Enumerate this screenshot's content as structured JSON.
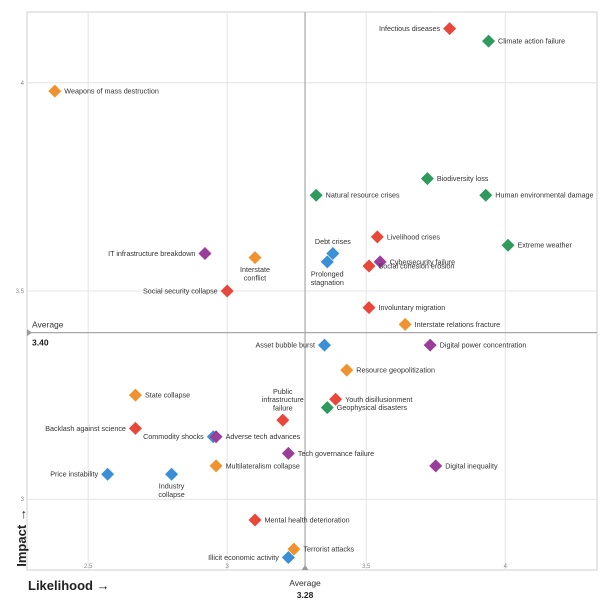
{
  "chart_data": {
    "type": "scatter",
    "xlabel": "Likelihood →",
    "ylabel": "Impact →",
    "xlim": [
      2.28,
      4.33
    ],
    "ylim": [
      2.83,
      4.17
    ],
    "x_ticks": [
      {
        "value": 2.5,
        "label": "2.5"
      },
      {
        "value": 3.0,
        "label": "3"
      },
      {
        "value": 3.5,
        "label": "3.5"
      },
      {
        "value": 4.0,
        "label": "4"
      }
    ],
    "y_ticks": [
      {
        "value": 3.0,
        "label": "3"
      },
      {
        "value": 3.5,
        "label": "3.5"
      },
      {
        "value": 4.0,
        "label": "4"
      }
    ],
    "average_x": {
      "value": 3.28,
      "label": "Average",
      "value_label": "3.28"
    },
    "average_y": {
      "value": 3.4,
      "label": "Average",
      "value_label": "3.40"
    },
    "grid": true,
    "category_colors": {
      "economic": "#3a8fd6",
      "environmental": "#2e9a5e",
      "geopolitical": "#f0922e",
      "societal": "#e8473a",
      "technological": "#9b3d9b"
    },
    "points": [
      {
        "name": "Infectious diseases",
        "x": 3.8,
        "y": 4.13,
        "category": "societal",
        "label_side": "left"
      },
      {
        "name": "Climate action failure",
        "x": 3.94,
        "y": 4.1,
        "category": "environmental",
        "label_side": "right"
      },
      {
        "name": "Weapons of mass destruction",
        "x": 2.38,
        "y": 3.98,
        "category": "geopolitical",
        "label_side": "right"
      },
      {
        "name": "Biodiversity loss",
        "x": 3.72,
        "y": 3.77,
        "category": "environmental",
        "label_side": "right"
      },
      {
        "name": "Natural resource crises",
        "x": 3.32,
        "y": 3.73,
        "category": "environmental",
        "label_side": "right"
      },
      {
        "name": "Human environmental damage",
        "x": 3.93,
        "y": 3.73,
        "category": "environmental",
        "label_side": "right"
      },
      {
        "name": "Livelihood crises",
        "x": 3.54,
        "y": 3.63,
        "category": "societal",
        "label_side": "right"
      },
      {
        "name": "Extreme weather",
        "x": 4.01,
        "y": 3.61,
        "category": "environmental",
        "label_side": "right"
      },
      {
        "name": "Debt crises",
        "x": 3.38,
        "y": 3.59,
        "category": "economic",
        "label_side": "above"
      },
      {
        "name": "Cybersecurity failure",
        "x": 3.55,
        "y": 3.57,
        "category": "technological",
        "label_side": "right"
      },
      {
        "name": "IT infrastructure breakdown",
        "x": 2.92,
        "y": 3.59,
        "category": "technological",
        "label_side": "left"
      },
      {
        "name": "Interstate conflict",
        "x": 3.1,
        "y": 3.58,
        "category": "geopolitical",
        "label_side": "below"
      },
      {
        "name": "Prolonged stagnation",
        "x": 3.36,
        "y": 3.57,
        "category": "economic",
        "label_side": "below"
      },
      {
        "name": "Social cohesion erosion",
        "x": 3.51,
        "y": 3.56,
        "category": "societal",
        "label_side": "right"
      },
      {
        "name": "Social security collapse",
        "x": 3.0,
        "y": 3.5,
        "category": "societal",
        "label_side": "left"
      },
      {
        "name": "Involuntary migration",
        "x": 3.51,
        "y": 3.46,
        "category": "societal",
        "label_side": "right"
      },
      {
        "name": "Interstate relations fracture",
        "x": 3.64,
        "y": 3.42,
        "category": "geopolitical",
        "label_side": "right"
      },
      {
        "name": "Asset bubble burst",
        "x": 3.35,
        "y": 3.37,
        "category": "economic",
        "label_side": "left"
      },
      {
        "name": "Digital power concentration",
        "x": 3.73,
        "y": 3.37,
        "category": "technological",
        "label_side": "right"
      },
      {
        "name": "Resource geopolitization",
        "x": 3.43,
        "y": 3.31,
        "category": "geopolitical",
        "label_side": "right"
      },
      {
        "name": "State collapse",
        "x": 2.67,
        "y": 3.25,
        "category": "geopolitical",
        "label_side": "right"
      },
      {
        "name": "Youth disillusionment",
        "x": 3.39,
        "y": 3.24,
        "category": "societal",
        "label_side": "right"
      },
      {
        "name": "Public infrastructure failure",
        "x": 3.2,
        "y": 3.19,
        "category": "societal",
        "label_side": "above"
      },
      {
        "name": "Geophysical disasters",
        "x": 3.36,
        "y": 3.22,
        "category": "environmental",
        "label_side": "right"
      },
      {
        "name": "Backlash against science",
        "x": 2.67,
        "y": 3.17,
        "category": "societal",
        "label_side": "left"
      },
      {
        "name": "Commodity shocks",
        "x": 2.95,
        "y": 3.15,
        "category": "economic",
        "label_side": "left"
      },
      {
        "name": "Adverse tech advances",
        "x": 2.96,
        "y": 3.15,
        "category": "technological",
        "label_side": "right"
      },
      {
        "name": "Tech governance failure",
        "x": 3.22,
        "y": 3.11,
        "category": "technological",
        "label_side": "right"
      },
      {
        "name": "Digital inequality",
        "x": 3.75,
        "y": 3.08,
        "category": "technological",
        "label_side": "right"
      },
      {
        "name": "Multilateralism collapse",
        "x": 2.96,
        "y": 3.08,
        "category": "geopolitical",
        "label_side": "right"
      },
      {
        "name": "Price instability",
        "x": 2.57,
        "y": 3.06,
        "category": "economic",
        "label_side": "left"
      },
      {
        "name": "Industry collapse",
        "x": 2.8,
        "y": 3.06,
        "category": "economic",
        "label_side": "below"
      },
      {
        "name": "Mental health deterioration",
        "x": 3.1,
        "y": 2.95,
        "category": "societal",
        "label_side": "right"
      },
      {
        "name": "Terrorist attacks",
        "x": 3.24,
        "y": 2.88,
        "category": "geopolitical",
        "label_side": "right"
      },
      {
        "name": "Illicit economic activity",
        "x": 3.22,
        "y": 2.86,
        "category": "economic",
        "label_side": "left"
      }
    ]
  }
}
